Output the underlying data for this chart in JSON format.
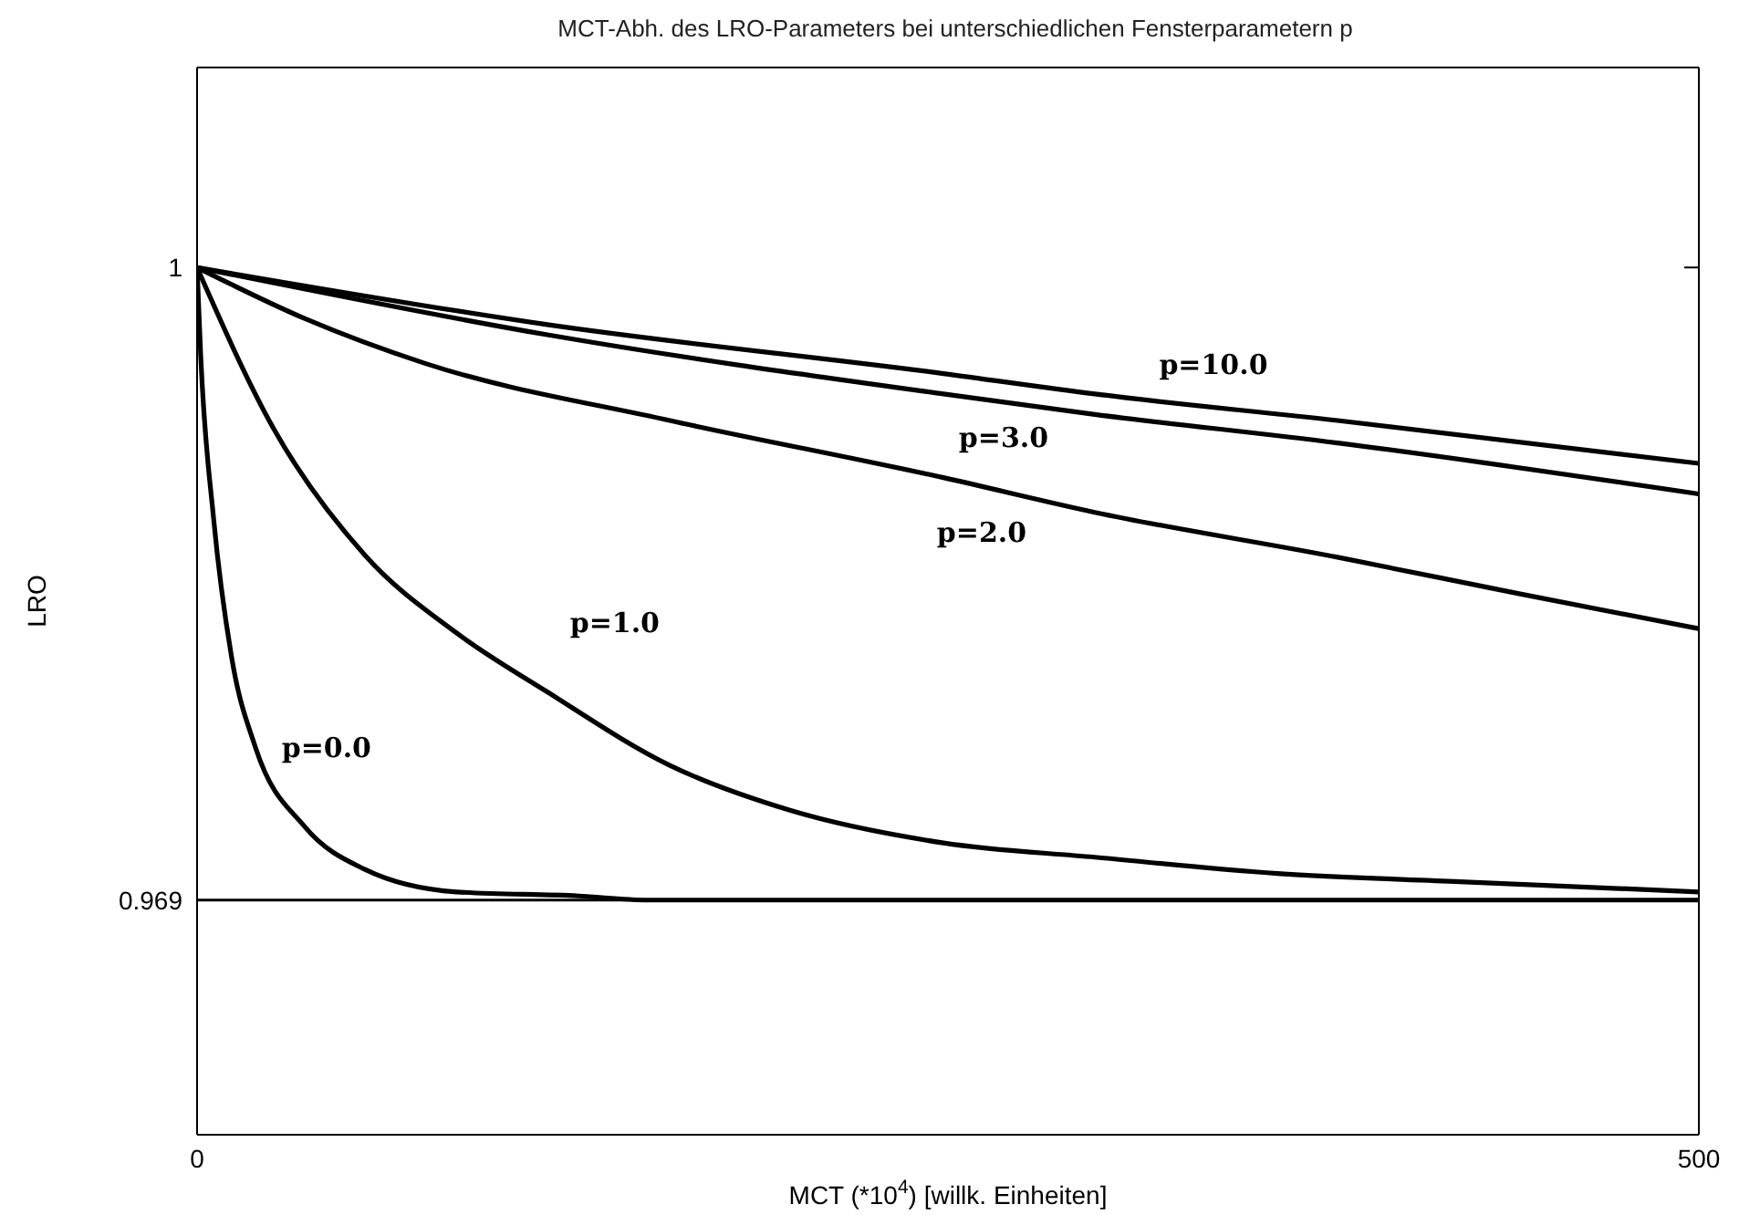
{
  "chart_data": {
    "type": "line",
    "title": "MCT-Abh. des LRO-Parameters bei unterschiedlichen Fensterparametern p",
    "xlabel": "MCT (*10$^{4}$) [willk. Einheiten]",
    "ylabel": "LRO",
    "xlim": [
      0,
      500
    ],
    "xticks": [
      0,
      500
    ],
    "ylim": [
      0.9575,
      1.0098
    ],
    "yticks": [
      0.969,
      1
    ],
    "legend": false,
    "marker": "none",
    "line_style": "solid",
    "ref_lines": [
      {
        "axis": "y",
        "value": 0.969,
        "color": "#000000"
      }
    ],
    "series": [
      {
        "name": "p=0.0",
        "color": "#000000",
        "x": [
          0,
          1.2,
          5.5,
          11.5,
          19.4,
          35.8,
          55.9,
          86.3,
          127,
          150,
          500
        ],
        "values": [
          1,
          0.9957,
          0.9877,
          0.9809,
          0.9765,
          0.9726,
          0.9705,
          0.9694,
          0.9692,
          0.969,
          0.969
        ]
      },
      {
        "name": "p=1.0",
        "color": "#000000",
        "x": [
          0,
          25.5,
          55.9,
          86.3,
          116.6,
          157.4,
          197.4,
          248.5,
          298.9,
          359.7,
          420.4,
          500
        ],
        "values": [
          1,
          0.9921,
          0.9859,
          0.9821,
          0.9792,
          0.9756,
          0.9734,
          0.9718,
          0.9711,
          0.9703,
          0.9699,
          0.9694
        ]
      },
      {
        "name": "p=2.0",
        "color": "#000000",
        "x": [
          0,
          35.8,
          75.9,
          157.4,
          248.5,
          298.9,
          379.7,
          440.5,
          500
        ],
        "values": [
          1,
          0.9975,
          0.9953,
          0.9925,
          0.9897,
          0.988,
          0.9858,
          0.984,
          0.9823
        ]
      },
      {
        "name": "p=3.0",
        "color": "#000000",
        "x": [
          0,
          116.6,
          248.5,
          298.9,
          379.7,
          500
        ],
        "values": [
          1,
          0.9967,
          0.9938,
          0.9928,
          0.9914,
          0.9889
        ]
      },
      {
        "name": "p=10.0",
        "color": "#000000",
        "x": [
          0,
          116.6,
          248.5,
          298.9,
          379.7,
          500
        ],
        "values": [
          1,
          0.9972,
          0.9948,
          0.9938,
          0.9925,
          0.9904
        ]
      }
    ]
  }
}
